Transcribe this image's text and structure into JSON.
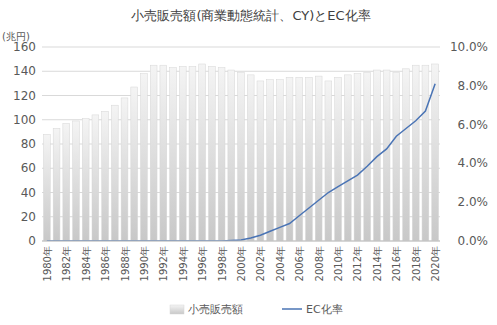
{
  "chart_data": {
    "type": "bar",
    "title": "小売販売額(商業動態統計、CY)とEC化率",
    "y_label": "(兆円)",
    "categories": [
      "1980年",
      null,
      "1982年",
      null,
      "1984年",
      null,
      "1986年",
      null,
      "1988年",
      null,
      "1990年",
      null,
      "1992年",
      null,
      "1994年",
      null,
      "1996年",
      null,
      "1998年",
      null,
      "2000年",
      null,
      "2002年",
      null,
      "2004年",
      null,
      "2006年",
      null,
      "2008年",
      null,
      "2010年",
      null,
      "2012年",
      null,
      "2014年",
      null,
      "2016年",
      null,
      "2018年",
      null,
      "2020年"
    ],
    "series": [
      {
        "name": "小売販売額",
        "type": "bar",
        "color": "#c8c8c8",
        "values": [
          88,
          93,
          97,
          99,
          101,
          104,
          107,
          112,
          118,
          127,
          138,
          145,
          145,
          143,
          144,
          144,
          146,
          144,
          143,
          141,
          139,
          137,
          132,
          133,
          133,
          135,
          135,
          135,
          136,
          132,
          135,
          137,
          138,
          139,
          141,
          141,
          139,
          142,
          145,
          145,
          146
        ]
      },
      {
        "name": "EC化率",
        "type": "line",
        "axis": "y2",
        "color": "#4a74b5",
        "values": [
          0,
          0,
          0,
          0,
          0,
          0,
          0,
          0,
          0,
          0,
          0,
          0,
          0,
          0,
          0,
          0,
          0,
          0,
          0,
          0.02,
          0.05,
          0.15,
          0.3,
          0.5,
          0.7,
          0.9,
          1.3,
          1.7,
          2.1,
          2.5,
          2.8,
          3.1,
          3.4,
          3.85,
          4.35,
          4.75,
          5.4,
          5.8,
          6.2,
          6.7,
          8.1
        ]
      }
    ],
    "ylim": [
      0,
      160
    ],
    "yticks": [
      0,
      20,
      40,
      60,
      80,
      100,
      120,
      140,
      160
    ],
    "y2lim": [
      0,
      10
    ],
    "y2ticks": [
      {
        "value": 0,
        "label": "0.0%"
      },
      {
        "value": 2,
        "label": "2.0%"
      },
      {
        "value": 4,
        "label": "4.0%"
      },
      {
        "value": 6,
        "label": "6.0%"
      },
      {
        "value": 8,
        "label": "8.0%"
      },
      {
        "value": 10,
        "label": "10.0%"
      }
    ],
    "grid": true,
    "legend": "bottom"
  }
}
